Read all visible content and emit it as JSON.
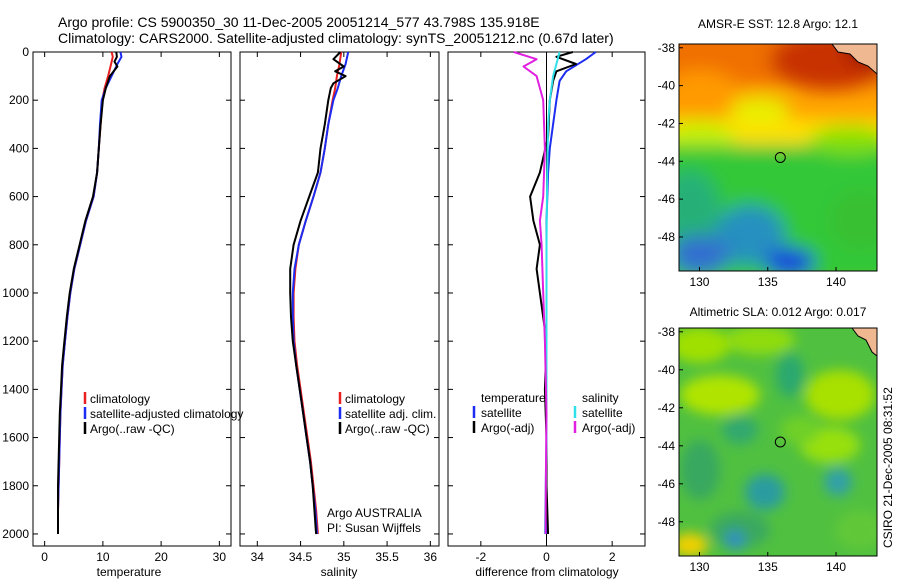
{
  "header": {
    "line1": "Argo profile: CS 5900350_30 11-Dec-2005 20051214_577 43.798S 135.918E",
    "line2": "Climatology: CARS2000. Satellite-adjusted climatology: synTS_20051212.nc (0.67d later)"
  },
  "side_label": "CSIRO 21-Dec-2005 08:31:52",
  "colors": {
    "climatology": "#e82020",
    "satellite": "#1c2cf0",
    "argo": "#000000",
    "sal_satellite": "#30e0e8",
    "sal_argo": "#e020e0"
  },
  "chart_data": [
    {
      "type": "line",
      "panel": "temperature",
      "xlabel": "temperature",
      "xlim": [
        -2,
        32
      ],
      "xticks": [
        0,
        10,
        20,
        30
      ],
      "ylim": [
        0,
        2050
      ],
      "yticks": [
        0,
        200,
        400,
        600,
        800,
        1000,
        1200,
        1400,
        1600,
        1800,
        2000
      ],
      "legend": [
        "climatology",
        "satellite-adjusted climatology",
        "Argo(..raw -QC)"
      ],
      "series": [
        {
          "name": "climatology",
          "color": "#e82020",
          "points": [
            [
              11.5,
              0
            ],
            [
              11.7,
              20
            ],
            [
              11.3,
              60
            ],
            [
              10.9,
              100
            ],
            [
              10.3,
              150
            ],
            [
              9.9,
              200
            ],
            [
              9.6,
              300
            ],
            [
              9.3,
              400
            ],
            [
              9.0,
              500
            ],
            [
              8.4,
              600
            ],
            [
              7.1,
              700
            ],
            [
              6.1,
              800
            ],
            [
              5.1,
              900
            ],
            [
              4.4,
              1000
            ],
            [
              3.9,
              1100
            ],
            [
              3.5,
              1200
            ],
            [
              3.1,
              1300
            ],
            [
              2.9,
              1400
            ],
            [
              2.7,
              1500
            ],
            [
              2.6,
              1600
            ],
            [
              2.5,
              1700
            ],
            [
              2.4,
              1800
            ],
            [
              2.3,
              1900
            ],
            [
              2.3,
              2000
            ]
          ]
        },
        {
          "name": "satellite-adjusted climatology",
          "color": "#1c2cf0",
          "points": [
            [
              13.0,
              0
            ],
            [
              13.2,
              20
            ],
            [
              12.5,
              50
            ],
            [
              11.5,
              100
            ],
            [
              10.5,
              150
            ],
            [
              9.8,
              200
            ],
            [
              9.5,
              300
            ],
            [
              9.3,
              400
            ],
            [
              9.0,
              500
            ],
            [
              8.4,
              600
            ],
            [
              7.1,
              700
            ],
            [
              6.1,
              800
            ],
            [
              5.1,
              900
            ],
            [
              4.4,
              1000
            ],
            [
              3.9,
              1100
            ],
            [
              3.5,
              1200
            ],
            [
              3.1,
              1300
            ],
            [
              2.9,
              1400
            ],
            [
              2.7,
              1500
            ],
            [
              2.6,
              1600
            ],
            [
              2.5,
              1700
            ],
            [
              2.4,
              1800
            ],
            [
              2.3,
              1900
            ],
            [
              2.3,
              2000
            ]
          ]
        },
        {
          "name": "Argo(..raw -QC)",
          "color": "#000000",
          "points": [
            [
              12.3,
              0
            ],
            [
              12.4,
              20
            ],
            [
              12.0,
              40
            ],
            [
              12.5,
              60
            ],
            [
              11.2,
              100
            ],
            [
              10.5,
              150
            ],
            [
              10.0,
              200
            ],
            [
              9.6,
              300
            ],
            [
              9.3,
              400
            ],
            [
              9.0,
              500
            ],
            [
              8.3,
              600
            ],
            [
              7.0,
              700
            ],
            [
              6.0,
              800
            ],
            [
              5.0,
              900
            ],
            [
              4.3,
              1000
            ],
            [
              3.8,
              1100
            ],
            [
              3.4,
              1200
            ],
            [
              3.0,
              1300
            ],
            [
              2.8,
              1400
            ],
            [
              2.6,
              1500
            ],
            [
              2.5,
              1600
            ],
            [
              2.4,
              1700
            ],
            [
              2.3,
              1800
            ],
            [
              2.3,
              1900
            ],
            [
              2.3,
              2000
            ]
          ]
        }
      ]
    },
    {
      "type": "line",
      "panel": "salinity",
      "xlabel": "salinity",
      "xlim": [
        33.8,
        36.1
      ],
      "xticks": [
        34,
        34.5,
        35,
        35.5,
        36
      ],
      "ylim": [
        0,
        2050
      ],
      "legend": [
        "climatology",
        "satellite adj. clim.",
        "Argo(..raw -QC)"
      ],
      "annotation": [
        "Argo AUSTRALIA",
        "PI: Susan Wijffels"
      ],
      "series": [
        {
          "name": "climatology",
          "color": "#e82020",
          "points": [
            [
              34.97,
              0
            ],
            [
              34.95,
              50
            ],
            [
              34.92,
              100
            ],
            [
              34.9,
              150
            ],
            [
              34.87,
              200
            ],
            [
              34.82,
              300
            ],
            [
              34.78,
              400
            ],
            [
              34.73,
              500
            ],
            [
              34.65,
              600
            ],
            [
              34.56,
              700
            ],
            [
              34.48,
              800
            ],
            [
              34.44,
              900
            ],
            [
              34.42,
              1000
            ],
            [
              34.42,
              1100
            ],
            [
              34.43,
              1200
            ],
            [
              34.46,
              1300
            ],
            [
              34.5,
              1400
            ],
            [
              34.54,
              1500
            ],
            [
              34.58,
              1600
            ],
            [
              34.62,
              1700
            ],
            [
              34.65,
              1800
            ],
            [
              34.68,
              1900
            ],
            [
              34.7,
              2000
            ]
          ]
        },
        {
          "name": "satellite adj. clim.",
          "color": "#1c2cf0",
          "points": [
            [
              35.05,
              0
            ],
            [
              35.02,
              50
            ],
            [
              34.97,
              100
            ],
            [
              34.93,
              150
            ],
            [
              34.88,
              200
            ],
            [
              34.82,
              300
            ],
            [
              34.78,
              400
            ],
            [
              34.73,
              500
            ],
            [
              34.65,
              600
            ],
            [
              34.56,
              700
            ],
            [
              34.48,
              800
            ],
            [
              34.43,
              900
            ],
            [
              34.41,
              1000
            ],
            [
              34.41,
              1100
            ],
            [
              34.42,
              1200
            ],
            [
              34.45,
              1300
            ],
            [
              34.49,
              1400
            ],
            [
              34.53,
              1500
            ],
            [
              34.57,
              1600
            ],
            [
              34.61,
              1700
            ],
            [
              34.64,
              1800
            ],
            [
              34.67,
              1900
            ],
            [
              34.69,
              2000
            ]
          ]
        },
        {
          "name": "Argo(..raw -QC)",
          "color": "#000000",
          "points": [
            [
              34.96,
              0
            ],
            [
              34.88,
              30
            ],
            [
              35.0,
              60
            ],
            [
              34.9,
              80
            ],
            [
              35.02,
              100
            ],
            [
              34.88,
              130
            ],
            [
              34.85,
              150
            ],
            [
              34.82,
              200
            ],
            [
              34.78,
              300
            ],
            [
              34.73,
              400
            ],
            [
              34.7,
              500
            ],
            [
              34.6,
              600
            ],
            [
              34.5,
              700
            ],
            [
              34.42,
              800
            ],
            [
              34.38,
              900
            ],
            [
              34.38,
              1000
            ],
            [
              34.39,
              1100
            ],
            [
              34.41,
              1200
            ],
            [
              34.45,
              1300
            ],
            [
              34.49,
              1400
            ],
            [
              34.53,
              1500
            ],
            [
              34.57,
              1600
            ],
            [
              34.61,
              1700
            ],
            [
              34.64,
              1800
            ],
            [
              34.66,
              1900
            ],
            [
              34.68,
              2000
            ]
          ]
        }
      ]
    },
    {
      "type": "line",
      "panel": "difference",
      "xlabel": "difference from climatology",
      "xlim": [
        -3,
        3
      ],
      "xticks": [
        -2,
        0,
        2
      ],
      "ylim": [
        0,
        2050
      ],
      "legend_left": {
        "title": "temperature",
        "items": [
          "satellite",
          "Argo(-adj)"
        ]
      },
      "legend_right": {
        "title": "salinity",
        "items": [
          "satellite",
          "Argo(-adj)"
        ]
      },
      "series": [
        {
          "name": "temperature satellite",
          "color": "#1c2cf0",
          "points": [
            [
              1.5,
              0
            ],
            [
              1.2,
              30
            ],
            [
              0.6,
              80
            ],
            [
              0.4,
              120
            ],
            [
              0.3,
              200
            ],
            [
              0.2,
              300
            ],
            [
              0.1,
              400
            ],
            [
              0.05,
              500
            ],
            [
              0,
              700
            ],
            [
              0,
              1000
            ],
            [
              0,
              1500
            ],
            [
              0,
              2000
            ]
          ]
        },
        {
          "name": "temperature Argo(-adj)",
          "color": "#000000",
          "points": [
            [
              0.8,
              0
            ],
            [
              0.3,
              20
            ],
            [
              0.9,
              50
            ],
            [
              0.3,
              80
            ],
            [
              0.2,
              120
            ],
            [
              0.1,
              200
            ],
            [
              0.05,
              350
            ],
            [
              -0.2,
              500
            ],
            [
              -0.5,
              600
            ],
            [
              -0.4,
              700
            ],
            [
              -0.2,
              800
            ],
            [
              -0.3,
              900
            ],
            [
              -0.2,
              1000
            ],
            [
              -0.1,
              1100
            ],
            [
              0,
              1200
            ],
            [
              -0.05,
              1400
            ],
            [
              0,
              1600
            ],
            [
              0,
              1800
            ],
            [
              0.05,
              2000
            ]
          ]
        },
        {
          "name": "salinity satellite",
          "color": "#30e0e8",
          "points": [
            [
              0.4,
              0
            ],
            [
              0.3,
              50
            ],
            [
              0.2,
              100
            ],
            [
              0.1,
              200
            ],
            [
              0.05,
              300
            ],
            [
              0.02,
              500
            ],
            [
              0,
              800
            ],
            [
              0,
              1200
            ],
            [
              0,
              1600
            ],
            [
              -0.05,
              2000
            ]
          ]
        },
        {
          "name": "salinity Argo(-adj)",
          "color": "#e020e0",
          "points": [
            [
              -1.0,
              0
            ],
            [
              -0.3,
              30
            ],
            [
              -0.7,
              60
            ],
            [
              -0.3,
              100
            ],
            [
              -0.2,
              150
            ],
            [
              -0.1,
              200
            ],
            [
              -0.05,
              400
            ],
            [
              -0.1,
              600
            ],
            [
              -0.2,
              700
            ],
            [
              -0.15,
              800
            ],
            [
              -0.1,
              1000
            ],
            [
              -0.05,
              1200
            ],
            [
              0,
              1500
            ],
            [
              -0.02,
              1800
            ],
            [
              -0.03,
              2000
            ]
          ]
        }
      ]
    },
    {
      "type": "heatmap",
      "panel": "map-sst",
      "title": "AMSR-E SST: 12.8 Argo: 12.1",
      "xlim": [
        128.5,
        143
      ],
      "ylim": [
        -49.8,
        -37.8
      ],
      "xticks": [
        130,
        135,
        140
      ],
      "yticks": [
        -38,
        -40,
        -42,
        -44,
        -46,
        -48
      ],
      "marker": [
        135.918,
        -43.798
      ]
    },
    {
      "type": "heatmap",
      "panel": "map-sla",
      "title": "Altimetric SLA: 0.012 Argo: 0.017",
      "xlim": [
        128.5,
        143
      ],
      "ylim": [
        -49.8,
        -37.8
      ],
      "xticks": [
        130,
        135,
        140
      ],
      "yticks": [
        -38,
        -40,
        -42,
        -44,
        -46,
        -48
      ],
      "marker": [
        135.918,
        -43.798
      ]
    }
  ]
}
